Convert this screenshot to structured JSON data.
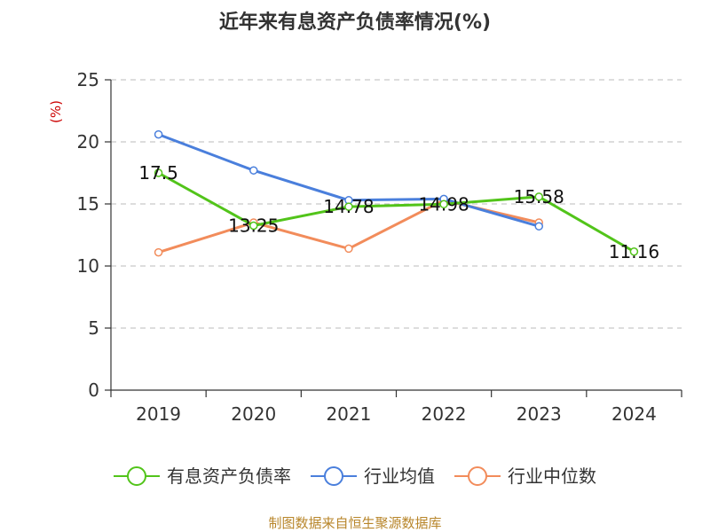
{
  "chart_data": {
    "type": "line",
    "title": "近年来有息资产负债率情况(%)",
    "ylabel": "(%)",
    "xlabel": "",
    "categories": [
      "2019",
      "2020",
      "2021",
      "2022",
      "2023",
      "2024"
    ],
    "ylim": [
      0,
      25
    ],
    "yticks": [
      0,
      5,
      10,
      15,
      20,
      25
    ],
    "grid": true,
    "legend_position": "bottom",
    "series": [
      {
        "name": "有息资产负债率",
        "color": "#52c41a",
        "values": [
          17.5,
          13.25,
          14.78,
          14.98,
          15.58,
          11.16
        ],
        "labels": [
          "17.5",
          "13.25",
          "14.78",
          "14.98",
          "15.58",
          "11.16"
        ]
      },
      {
        "name": "行业均值",
        "color": "#4a7fdc",
        "values": [
          20.6,
          17.7,
          15.3,
          15.4,
          13.2,
          null
        ]
      },
      {
        "name": "行业中位数",
        "color": "#f28c5b",
        "values": [
          11.1,
          13.5,
          11.4,
          15.3,
          13.5,
          null
        ]
      }
    ]
  },
  "source": "制图数据来自恒生聚源数据库"
}
